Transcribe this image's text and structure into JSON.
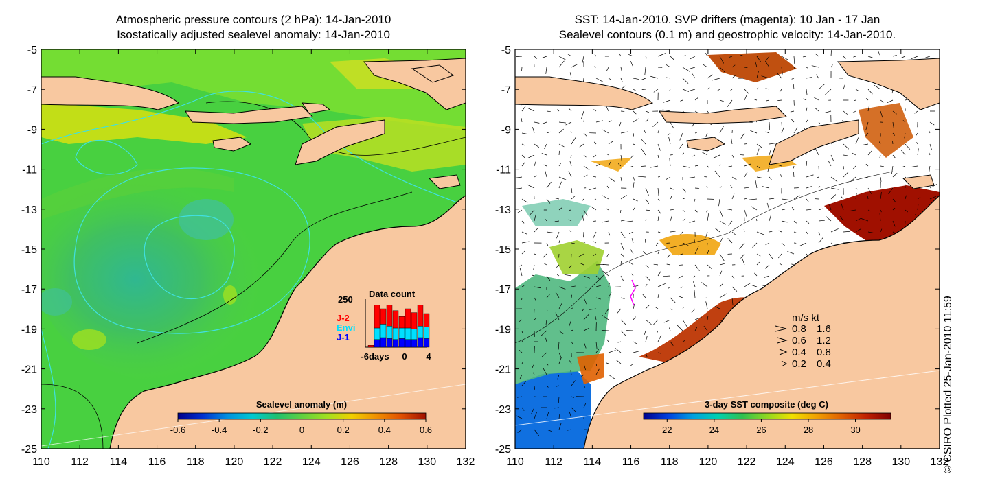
{
  "left_panel": {
    "title_line1": "Atmospheric pressure contours (2 hPa): 14-Jan-2010",
    "title_line2": "Isostatically adjusted sealevel anomaly: 14-Jan-2010",
    "colorbar": {
      "title": "Sealevel anomaly (m)",
      "ticks": [
        "-0.6",
        "-0.4",
        "-0.2",
        "0",
        "0.2",
        "0.4",
        "0.6"
      ],
      "range": [
        -0.6,
        0.6
      ],
      "colormap": [
        "#00008b",
        "#0030d0",
        "#0090e0",
        "#00c8d0",
        "#20c070",
        "#60d040",
        "#a0e020",
        "#f0d000",
        "#f09000",
        "#e05000",
        "#a01000"
      ]
    },
    "inset": {
      "title": "Data count",
      "y_max_label": "250",
      "legend": [
        {
          "label": "J-2",
          "color": "#ff0000"
        },
        {
          "label": "Envi",
          "color": "#00e0ff"
        },
        {
          "label": "J-1",
          "color": "#0000ff"
        }
      ],
      "x_labels": [
        "-6days",
        "0",
        "4"
      ],
      "x_values": [
        -6,
        -5,
        -4,
        -3,
        -2,
        -1,
        0,
        1,
        2,
        3
      ],
      "series": [
        {
          "name": "J-1",
          "values": [
            0,
            40,
            50,
            45,
            40,
            45,
            40,
            40,
            50,
            45
          ]
        },
        {
          "name": "Envi",
          "values": [
            0,
            60,
            70,
            65,
            60,
            55,
            60,
            55,
            60,
            60
          ]
        },
        {
          "name": "J-2",
          "values": [
            10,
            120,
            80,
            110,
            90,
            60,
            100,
            85,
            110,
            70
          ]
        }
      ]
    }
  },
  "right_panel": {
    "title_line1": "SST: 14-Jan-2010. SVP drifters (magenta): 10 Jan - 17 Jan",
    "title_line2": "Sealevel contours (0.1 m) and geostrophic velocity: 14-Jan-2010.",
    "colorbar": {
      "title": "3-day SST composite (deg C)",
      "ticks": [
        "22",
        "24",
        "26",
        "28",
        "30"
      ],
      "range": [
        21,
        31.5
      ],
      "colormap": [
        "#00008b",
        "#0040e0",
        "#00a0e0",
        "#00d0b0",
        "#30c050",
        "#90d820",
        "#f0e000",
        "#f0a000",
        "#e06000",
        "#c02000",
        "#800000"
      ]
    },
    "velocity_legend": {
      "header": "m/s  kt",
      "entries": [
        {
          "ms": "0.8",
          "kt": "1.6"
        },
        {
          "ms": "0.6",
          "kt": "1.2"
        },
        {
          "ms": "0.4",
          "kt": "0.8"
        },
        {
          "ms": "0.2",
          "kt": "0.4"
        }
      ]
    }
  },
  "axes": {
    "x_ticks": [
      "110",
      "112",
      "114",
      "116",
      "118",
      "120",
      "122",
      "124",
      "126",
      "128",
      "130",
      "132"
    ],
    "y_ticks": [
      "-5",
      "-7",
      "-9",
      "-11",
      "-13",
      "-15",
      "-17",
      "-19",
      "-21",
      "-23",
      "-25"
    ],
    "lon_range": [
      110,
      132
    ],
    "lat_range": [
      -25,
      -5
    ]
  },
  "credit": "© CSIRO Plotted 25-Jan-2010 11:59",
  "colors": {
    "land": "#f8c8a0",
    "ocean_green": "#50d840",
    "contour_cyan": "#40e0e0",
    "drifter": "#ff00ff"
  }
}
